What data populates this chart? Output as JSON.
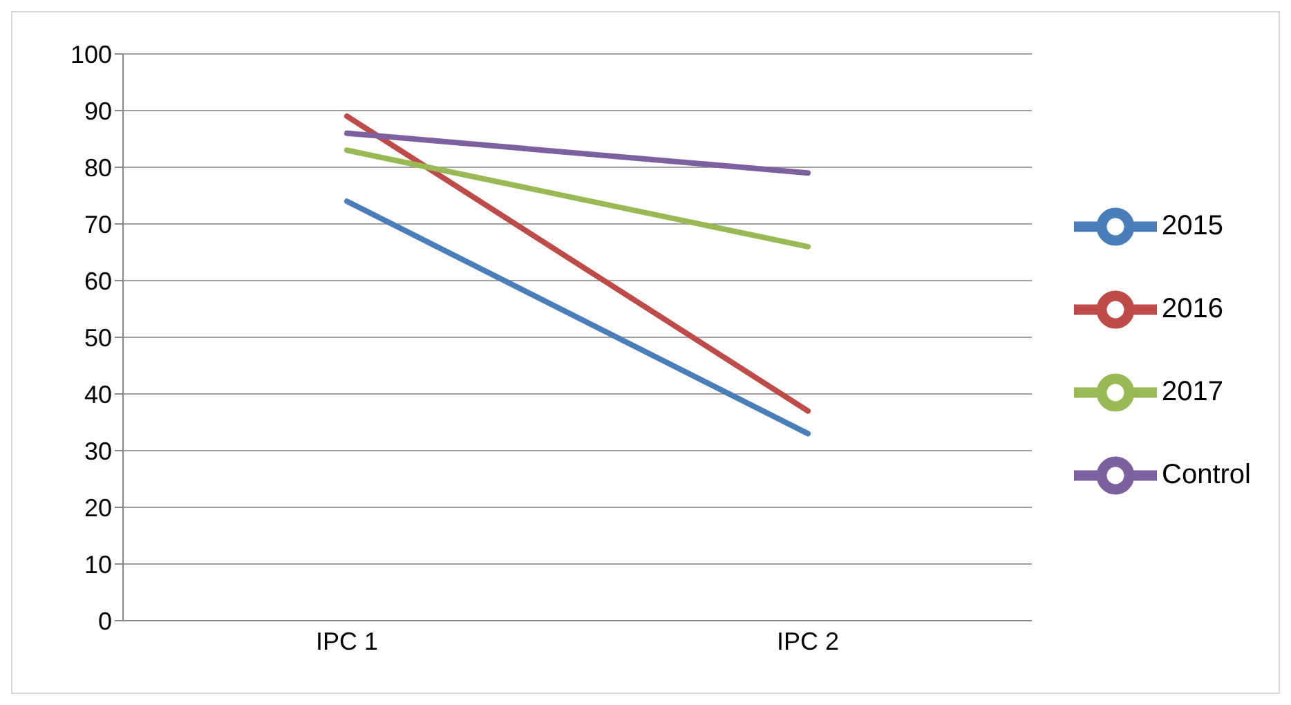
{
  "chart_data": {
    "type": "line",
    "categories": [
      "IPC 1",
      "IPC 2"
    ],
    "series": [
      {
        "name": "2015",
        "color": "#4a7ebb",
        "values": [
          74,
          33
        ]
      },
      {
        "name": "2016",
        "color": "#be4b48",
        "values": [
          89,
          37
        ]
      },
      {
        "name": "2017",
        "color": "#98b954",
        "values": [
          83,
          66
        ]
      },
      {
        "name": "Control",
        "color": "#7d60a0",
        "values": [
          86,
          79
        ]
      }
    ],
    "ylim": [
      0,
      100
    ],
    "yticks": [
      0,
      10,
      20,
      30,
      40,
      50,
      60,
      70,
      80,
      90,
      100
    ],
    "grid": "y",
    "legend": "right",
    "marker": "none",
    "line_style": "solid"
  }
}
